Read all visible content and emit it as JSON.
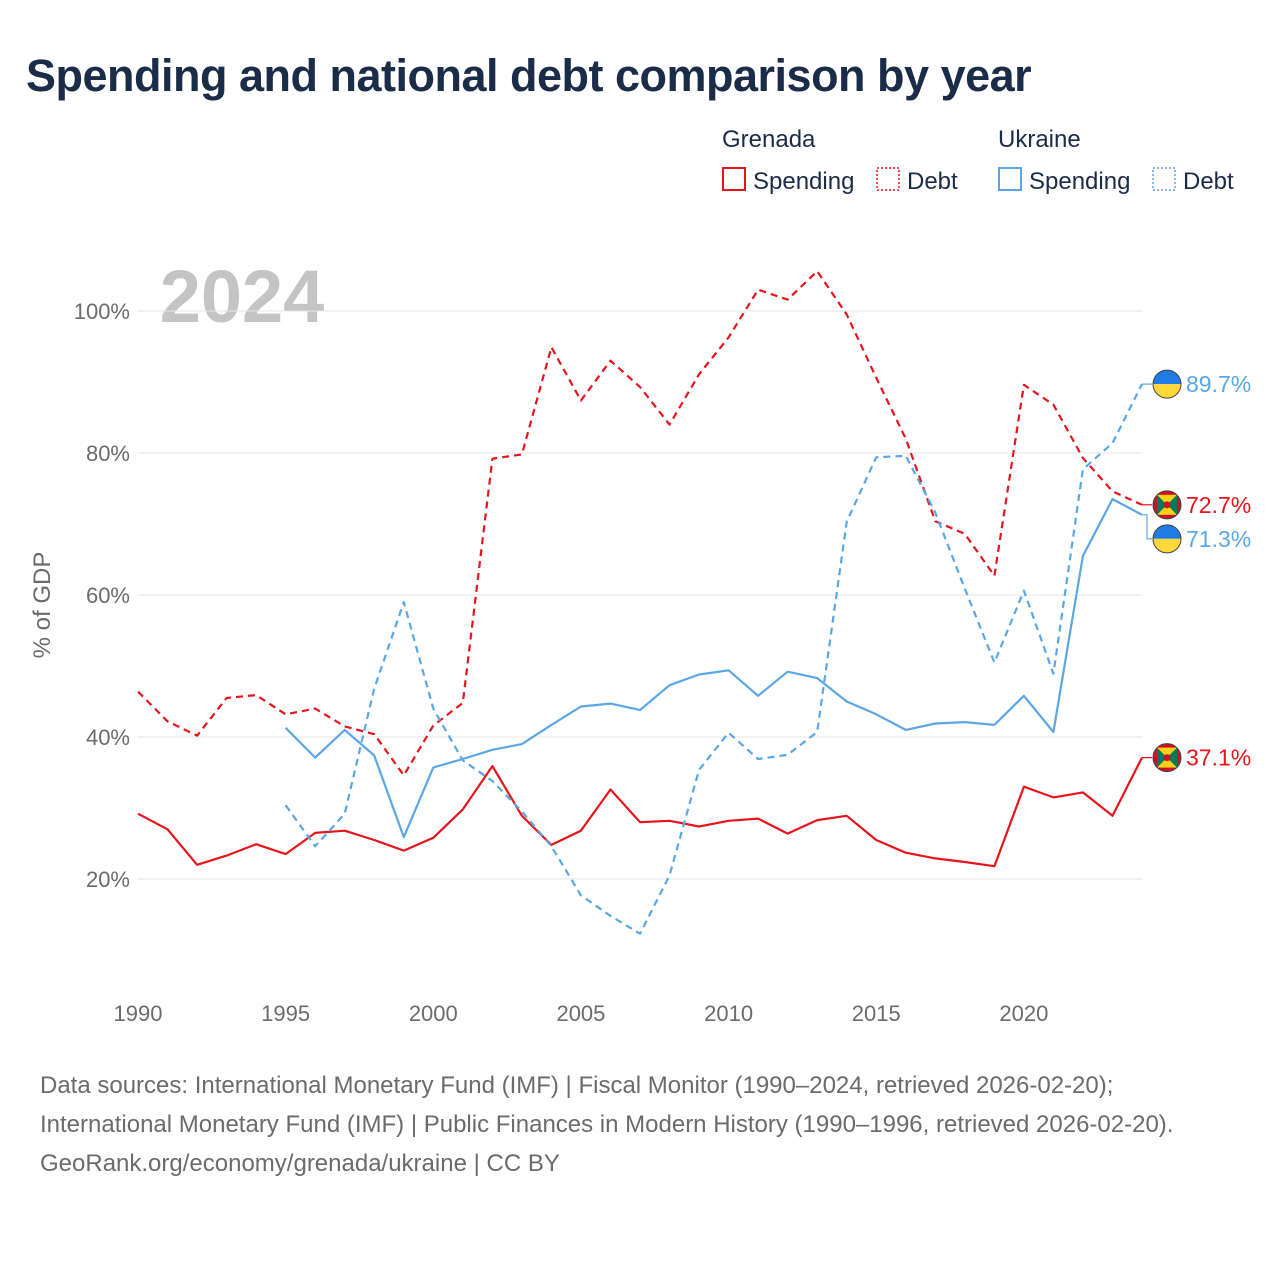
{
  "title": "Spending and national debt comparison by year",
  "year_watermark": "2024",
  "legend": {
    "groups": [
      {
        "country": "Grenada",
        "color": "#e8141c",
        "entries": [
          {
            "label": "Spending",
            "style": "solid"
          },
          {
            "label": "Debt",
            "style": "dotted"
          }
        ]
      },
      {
        "country": "Ukraine",
        "color": "#5ba7e6",
        "entries": [
          {
            "label": "Spending",
            "style": "solid"
          },
          {
            "label": "Debt",
            "style": "dotted"
          }
        ]
      }
    ]
  },
  "chart_data": {
    "type": "line",
    "title": "Spending and national debt comparison by year",
    "xlabel": "",
    "ylabel": "% of GDP",
    "xlim": [
      1990,
      2024
    ],
    "ylim": [
      8,
      108
    ],
    "x_ticks": [
      1990,
      1995,
      2000,
      2005,
      2010,
      2015,
      2020
    ],
    "y_ticks": [
      20,
      40,
      60,
      80,
      100
    ],
    "y_tick_labels": [
      "20%",
      "40%",
      "60%",
      "80%",
      "100%"
    ],
    "grid": true,
    "series": [
      {
        "name": "Grenada Spending",
        "country": "Grenada",
        "color": "#e8141c",
        "dash": "solid",
        "x": [
          1990,
          1991,
          1992,
          1993,
          1994,
          1995,
          1996,
          1997,
          1998,
          1999,
          2000,
          2001,
          2002,
          2003,
          2004,
          2005,
          2006,
          2007,
          2008,
          2009,
          2010,
          2011,
          2012,
          2013,
          2014,
          2015,
          2016,
          2017,
          2018,
          2019,
          2020,
          2021,
          2022,
          2023,
          2024
        ],
        "values": [
          29.2,
          27.0,
          22.0,
          23.3,
          24.9,
          23.5,
          26.5,
          26.8,
          25.5,
          24.0,
          25.8,
          29.8,
          35.9,
          28.9,
          24.8,
          26.8,
          32.6,
          28.0,
          28.2,
          27.4,
          28.2,
          28.5,
          26.4,
          28.3,
          28.9,
          25.5,
          23.7,
          22.9,
          22.4,
          21.8,
          33.0,
          31.5,
          32.2,
          28.9,
          37.1
        ],
        "end_label": "37.1%"
      },
      {
        "name": "Grenada Debt",
        "country": "Grenada",
        "color": "#e8141c",
        "dash": "dashed",
        "x": [
          1990,
          1991,
          1992,
          1993,
          1994,
          1995,
          1996,
          1997,
          1998,
          1999,
          2000,
          2001,
          2002,
          2003,
          2004,
          2005,
          2006,
          2007,
          2008,
          2009,
          2010,
          2011,
          2012,
          2013,
          2014,
          2015,
          2016,
          2017,
          2018,
          2019,
          2020,
          2021,
          2022,
          2023,
          2024
        ],
        "values": [
          46.4,
          42.2,
          40.2,
          45.5,
          45.9,
          43.2,
          44.0,
          41.5,
          40.4,
          34.6,
          41.6,
          44.8,
          79.2,
          79.8,
          94.9,
          87.4,
          93.0,
          89.3,
          84.0,
          91.1,
          96.3,
          103.0,
          101.6,
          105.6,
          99.5,
          90.6,
          82.0,
          70.4,
          68.6,
          62.7,
          89.6,
          86.8,
          79.3,
          74.6,
          72.7
        ],
        "end_label": "72.7%"
      },
      {
        "name": "Ukraine Spending",
        "country": "Ukraine",
        "color": "#5ba7e6",
        "dash": "solid",
        "x": [
          1995,
          1996,
          1997,
          1998,
          1999,
          2000,
          2001,
          2002,
          2003,
          2004,
          2005,
          2006,
          2007,
          2008,
          2009,
          2010,
          2011,
          2012,
          2013,
          2014,
          2015,
          2016,
          2017,
          2018,
          2019,
          2020,
          2021,
          2022,
          2023,
          2024
        ],
        "values": [
          41.3,
          37.1,
          41.0,
          37.4,
          25.9,
          35.7,
          36.9,
          38.2,
          39.0,
          41.7,
          44.3,
          44.7,
          43.8,
          47.3,
          48.8,
          49.4,
          45.8,
          49.2,
          48.3,
          45.0,
          43.2,
          41.0,
          41.9,
          42.1,
          41.7,
          45.8,
          40.7,
          65.5,
          73.5,
          71.3
        ],
        "end_label": "71.3%"
      },
      {
        "name": "Ukraine Debt",
        "country": "Ukraine",
        "color": "#5ba7e6",
        "dash": "dashed",
        "x": [
          1995,
          1996,
          1997,
          1998,
          1999,
          2000,
          2001,
          2002,
          2003,
          2004,
          2005,
          2006,
          2007,
          2008,
          2009,
          2010,
          2011,
          2012,
          2013,
          2014,
          2015,
          2016,
          2017,
          2018,
          2019,
          2020,
          2021,
          2022,
          2023,
          2024
        ],
        "values": [
          30.4,
          24.6,
          29.2,
          46.8,
          59.0,
          44.0,
          36.7,
          33.8,
          29.5,
          24.6,
          17.7,
          14.8,
          12.3,
          20.5,
          35.4,
          40.6,
          36.9,
          37.5,
          40.7,
          70.3,
          79.4,
          79.6,
          71.6,
          60.9,
          50.5,
          60.6,
          48.9,
          77.7,
          81.4,
          89.7
        ],
        "end_label": "89.7%"
      }
    ]
  },
  "footer": {
    "sources": "Data sources: International Monetary Fund (IMF) | Fiscal Monitor (1990–2024, retrieved 2026-02-20); International Monetary Fund (IMF) | Public Finances in Modern History (1990–1996, retrieved 2026-02-20).",
    "credit": "GeoRank.org/economy/grenada/ukraine | CC BY"
  }
}
